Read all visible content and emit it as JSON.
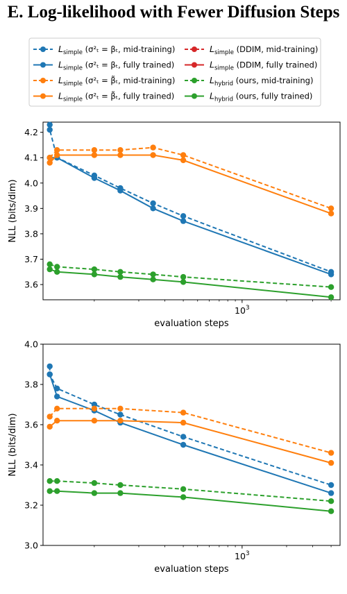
{
  "title": "E. Log-likelihood with Fewer Diffusion Steps",
  "legend": {
    "placement": "top",
    "entries": [
      {
        "key": "s1",
        "main": "L",
        "sub": "simple",
        "rest": " (σ²ₜ = βₜ, mid-training)"
      },
      {
        "key": "s2",
        "main": "L",
        "sub": "simple",
        "rest": " (σ²ₜ = βₜ, fully trained)"
      },
      {
        "key": "s3",
        "main": "L",
        "sub": "simple",
        "rest": " (σ²ₜ = β̃ₜ, mid-training)"
      },
      {
        "key": "s4",
        "main": "L",
        "sub": "simple",
        "rest": " (σ²ₜ = β̃ₜ, fully trained)"
      },
      {
        "key": "s5",
        "main": "L",
        "sub": "simple",
        "rest": " (DDIM, mid-training)"
      },
      {
        "key": "s6",
        "main": "L",
        "sub": "simple",
        "rest": " (DDIM, fully trained)"
      },
      {
        "key": "s7",
        "main": "L",
        "sub": "hybrid",
        "rest": " (ours, mid-training)"
      },
      {
        "key": "s8",
        "main": "L",
        "sub": "hybrid",
        "rest": " (ours, fully trained)"
      }
    ]
  },
  "chart_data": [
    {
      "type": "line",
      "xscale": "log",
      "xlabel": "evaluation steps",
      "ylabel": "NLL (bits/dim)",
      "xlim": [
        45,
        4600
      ],
      "ylim": [
        3.54,
        4.24
      ],
      "yticks": [
        "3.6",
        "3.7",
        "3.8",
        "3.9",
        "4.0",
        "4.1",
        "4.2"
      ],
      "xticks_minor": [
        100,
        200,
        300,
        400,
        500,
        600,
        700,
        800,
        900,
        2000,
        3000,
        4000
      ],
      "xtick_major": {
        "value": 1000,
        "base": "10",
        "exp": "3"
      },
      "grid": false,
      "series": [
        {
          "name": "Lsimple (σ²ₜ = βₜ, mid-training)",
          "color": "#1f77b4",
          "dash": true,
          "x": [
            50,
            50,
            56,
            100,
            150,
            250,
            400,
            4000
          ],
          "y": [
            4.23,
            4.21,
            4.1,
            4.03,
            3.98,
            3.92,
            3.87,
            3.65
          ]
        },
        {
          "name": "Lsimple (σ²ₜ = βₜ, fully trained)",
          "color": "#1f77b4",
          "dash": false,
          "x": [
            50,
            56,
            100,
            150,
            250,
            400,
            4000
          ],
          "y": [
            4.1,
            4.1,
            4.02,
            3.97,
            3.9,
            3.85,
            3.64
          ]
        },
        {
          "name": "Lsimple (σ²ₜ = β̃ₜ, mid-training)",
          "color": "#ff7f0e",
          "dash": true,
          "x": [
            50,
            56,
            100,
            150,
            250,
            400,
            4000
          ],
          "y": [
            4.1,
            4.13,
            4.13,
            4.13,
            4.14,
            4.11,
            3.9
          ]
        },
        {
          "name": "Lsimple (σ²ₜ = β̃ₜ, fully trained)",
          "color": "#ff7f0e",
          "dash": false,
          "x": [
            50,
            56,
            100,
            150,
            250,
            400,
            4000
          ],
          "y": [
            4.08,
            4.11,
            4.11,
            4.11,
            4.11,
            4.09,
            3.88
          ]
        },
        {
          "name": "Lhybrid (ours, mid-training)",
          "color": "#2ca02c",
          "dash": true,
          "x": [
            50,
            56,
            100,
            150,
            250,
            400,
            4000
          ],
          "y": [
            3.68,
            3.67,
            3.66,
            3.65,
            3.64,
            3.63,
            3.59
          ]
        },
        {
          "name": "Lhybrid (ours, fully trained)",
          "color": "#2ca02c",
          "dash": false,
          "x": [
            50,
            56,
            100,
            150,
            250,
            400,
            4000
          ],
          "y": [
            3.66,
            3.65,
            3.64,
            3.63,
            3.62,
            3.61,
            3.55
          ]
        }
      ]
    },
    {
      "type": "line",
      "xscale": "log",
      "xlabel": "evaluation steps",
      "ylabel": "NLL (bits/dim)",
      "xlim": [
        45,
        4600
      ],
      "ylim": [
        3.0,
        4.0
      ],
      "yticks": [
        "3.0",
        "3.2",
        "3.4",
        "3.6",
        "3.8",
        "4.0"
      ],
      "xticks_minor": [
        100,
        200,
        300,
        400,
        500,
        600,
        700,
        800,
        900,
        2000,
        3000,
        4000
      ],
      "xtick_major": {
        "value": 1000,
        "base": "10",
        "exp": "3"
      },
      "grid": false,
      "series": [
        {
          "name": "Lsimple (σ²ₜ = βₜ, mid-training)",
          "color": "#1f77b4",
          "dash": true,
          "x": [
            50,
            50,
            56,
            100,
            150,
            400,
            4000
          ],
          "y": [
            3.89,
            3.85,
            3.78,
            3.7,
            3.65,
            3.54,
            3.3
          ]
        },
        {
          "name": "Lsimple (σ²ₜ = βₜ, fully trained)",
          "color": "#1f77b4",
          "dash": false,
          "x": [
            50,
            56,
            100,
            150,
            400,
            4000
          ],
          "y": [
            3.85,
            3.74,
            3.67,
            3.61,
            3.5,
            3.26
          ]
        },
        {
          "name": "Lsimple (σ²ₜ = β̃ₜ, mid-training)",
          "color": "#ff7f0e",
          "dash": true,
          "x": [
            50,
            56,
            100,
            150,
            400,
            4000
          ],
          "y": [
            3.64,
            3.68,
            3.68,
            3.68,
            3.66,
            3.46
          ]
        },
        {
          "name": "Lsimple (σ²ₜ = β̃ₜ, fully trained)",
          "color": "#ff7f0e",
          "dash": false,
          "x": [
            50,
            56,
            100,
            150,
            400,
            4000
          ],
          "y": [
            3.59,
            3.62,
            3.62,
            3.62,
            3.61,
            3.41
          ]
        },
        {
          "name": "Lhybrid (ours, mid-training)",
          "color": "#2ca02c",
          "dash": true,
          "x": [
            50,
            56,
            100,
            150,
            400,
            4000
          ],
          "y": [
            3.32,
            3.32,
            3.31,
            3.3,
            3.28,
            3.22
          ]
        },
        {
          "name": "Lhybrid (ours, fully trained)",
          "color": "#2ca02c",
          "dash": false,
          "x": [
            50,
            56,
            100,
            150,
            400,
            4000
          ],
          "y": [
            3.27,
            3.27,
            3.26,
            3.26,
            3.24,
            3.17
          ]
        }
      ]
    }
  ],
  "legend_styles": {
    "s1": {
      "color": "#1f77b4",
      "dash": true
    },
    "s2": {
      "color": "#1f77b4",
      "dash": false
    },
    "s3": {
      "color": "#ff7f0e",
      "dash": true
    },
    "s4": {
      "color": "#ff7f0e",
      "dash": false
    },
    "s5": {
      "color": "#d62728",
      "dash": true
    },
    "s6": {
      "color": "#d62728",
      "dash": false
    },
    "s7": {
      "color": "#2ca02c",
      "dash": true
    },
    "s8": {
      "color": "#2ca02c",
      "dash": false
    }
  }
}
